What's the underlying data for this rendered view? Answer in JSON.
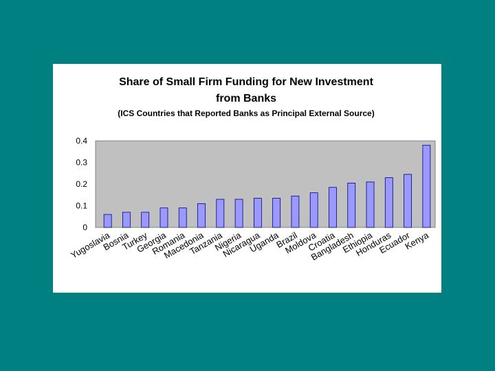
{
  "slide": {
    "background": "#008080"
  },
  "chart_data": {
    "type": "bar",
    "title": "Share of Small Firm Funding for New Investment",
    "title_line2": "from Banks",
    "subtitle": "(ICS Countries that Reported Banks as Principal External Source)",
    "xlabel": "",
    "ylabel": "",
    "ylim": [
      0,
      0.4
    ],
    "yticks": [
      "0",
      "0.1",
      "0.2",
      "0.3",
      "0.4"
    ],
    "grid": false,
    "legend": "none",
    "plot_background": "#c0c0c0",
    "bar_color": "#9999ff",
    "categories": [
      "Yugoslavia",
      "Bosnia",
      "Turkey",
      "Georgia",
      "Romania",
      "Macedonia",
      "Tanzania",
      "Nigeria",
      "Nicaragua",
      "Uganda",
      "Brazil",
      "Moldova",
      "Croatia",
      "Bangladesh",
      "Ethiopia",
      "Honduras",
      "Ecuador",
      "Kenya"
    ],
    "values": [
      0.06,
      0.07,
      0.07,
      0.09,
      0.09,
      0.11,
      0.13,
      0.13,
      0.135,
      0.135,
      0.145,
      0.16,
      0.185,
      0.205,
      0.21,
      0.23,
      0.245,
      0.38
    ]
  }
}
